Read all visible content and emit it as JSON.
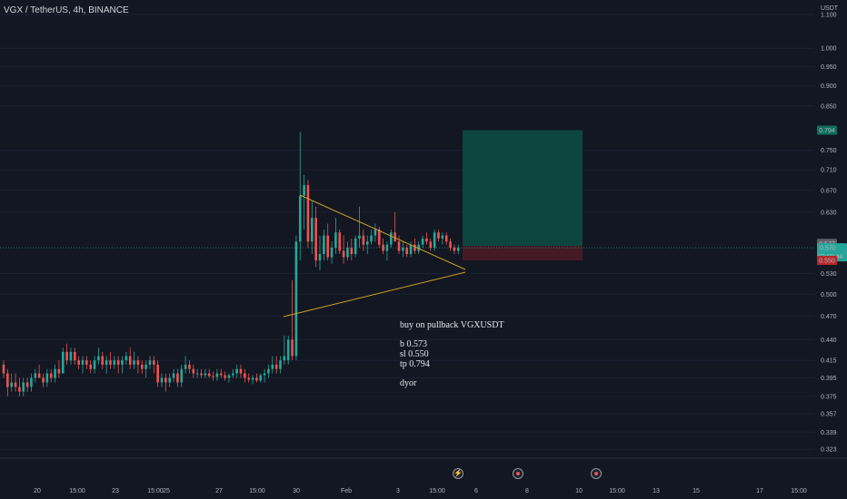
{
  "header": {
    "title": "VGX / TetherUS, 4h, BINANCE"
  },
  "axis": {
    "currency": "USDT",
    "price_ticks": [
      "1.100",
      "1.000",
      "0.950",
      "0.900",
      "0.850",
      "0.750",
      "0.710",
      "0.670",
      "0.630",
      "0.530",
      "0.500",
      "0.470",
      "0.440",
      "0.415",
      "0.395",
      "0.375",
      "0.357",
      "0.339",
      "0.323"
    ],
    "time_ticks": [
      "20",
      "15:00",
      "23",
      "15:00",
      "25",
      "27",
      "15:00",
      "30",
      "Feb",
      "3",
      "15:00",
      "6",
      "8",
      "10",
      "15:00",
      "13",
      "15",
      "17",
      "15:00"
    ]
  },
  "price_labels": {
    "tp": "0.794",
    "last_close": "0.577",
    "current": "0.570",
    "countdown": "02:59:44",
    "sl": "0.550"
  },
  "note": {
    "line1": "buy on pullback VGXUSDT",
    "line2": "b 0.573",
    "line3": "sl 0.550",
    "line4": "tp 0.794",
    "line5": "dyor"
  },
  "events": [
    {
      "icon": "lightning-icon"
    },
    {
      "icon": "flag-icon"
    },
    {
      "icon": "flag-icon"
    }
  ],
  "colors": {
    "up": "#26a69a",
    "down": "#ef5350",
    "bg": "#131722",
    "trendline": "#c9a227",
    "target_zone": "#0d4a42",
    "stop_zone": "#4a1c26"
  },
  "chart_data": {
    "type": "candlestick",
    "symbol": "VGX / TetherUS",
    "timeframe": "4h",
    "exchange": "BINANCE",
    "y_scale": "log",
    "ylim": [
      0.315,
      1.14
    ],
    "position": {
      "side": "long",
      "entry": 0.573,
      "stop_loss": 0.55,
      "take_profit": 0.794
    },
    "candles": [
      [
        0.41,
        0.415,
        0.395,
        0.4
      ],
      [
        0.4,
        0.405,
        0.375,
        0.385
      ],
      [
        0.385,
        0.4,
        0.38,
        0.39
      ],
      [
        0.39,
        0.4,
        0.38,
        0.385
      ],
      [
        0.385,
        0.395,
        0.375,
        0.38
      ],
      [
        0.38,
        0.395,
        0.375,
        0.39
      ],
      [
        0.39,
        0.395,
        0.38,
        0.385
      ],
      [
        0.385,
        0.4,
        0.38,
        0.395
      ],
      [
        0.395,
        0.405,
        0.39,
        0.4
      ],
      [
        0.4,
        0.41,
        0.395,
        0.395
      ],
      [
        0.395,
        0.4,
        0.385,
        0.39
      ],
      [
        0.39,
        0.405,
        0.385,
        0.4
      ],
      [
        0.4,
        0.405,
        0.39,
        0.395
      ],
      [
        0.395,
        0.41,
        0.39,
        0.405
      ],
      [
        0.405,
        0.415,
        0.395,
        0.4
      ],
      [
        0.4,
        0.43,
        0.4,
        0.425
      ],
      [
        0.425,
        0.435,
        0.41,
        0.415
      ],
      [
        0.415,
        0.43,
        0.41,
        0.425
      ],
      [
        0.425,
        0.43,
        0.41,
        0.415
      ],
      [
        0.415,
        0.42,
        0.405,
        0.41
      ],
      [
        0.41,
        0.42,
        0.4,
        0.415
      ],
      [
        0.415,
        0.42,
        0.405,
        0.41
      ],
      [
        0.41,
        0.415,
        0.4,
        0.405
      ],
      [
        0.405,
        0.42,
        0.4,
        0.415
      ],
      [
        0.415,
        0.43,
        0.41,
        0.42
      ],
      [
        0.42,
        0.425,
        0.405,
        0.41
      ],
      [
        0.41,
        0.42,
        0.4,
        0.415
      ],
      [
        0.415,
        0.425,
        0.405,
        0.41
      ],
      [
        0.41,
        0.42,
        0.405,
        0.415
      ],
      [
        0.415,
        0.42,
        0.4,
        0.41
      ],
      [
        0.41,
        0.42,
        0.4,
        0.415
      ],
      [
        0.415,
        0.425,
        0.41,
        0.42
      ],
      [
        0.42,
        0.43,
        0.405,
        0.41
      ],
      [
        0.41,
        0.425,
        0.405,
        0.415
      ],
      [
        0.415,
        0.42,
        0.4,
        0.41
      ],
      [
        0.41,
        0.415,
        0.4,
        0.405
      ],
      [
        0.405,
        0.415,
        0.395,
        0.41
      ],
      [
        0.41,
        0.42,
        0.405,
        0.415
      ],
      [
        0.415,
        0.42,
        0.4,
        0.41
      ],
      [
        0.41,
        0.415,
        0.385,
        0.39
      ],
      [
        0.39,
        0.4,
        0.385,
        0.395
      ],
      [
        0.395,
        0.4,
        0.38,
        0.39
      ],
      [
        0.39,
        0.4,
        0.385,
        0.395
      ],
      [
        0.395,
        0.405,
        0.39,
        0.4
      ],
      [
        0.4,
        0.405,
        0.385,
        0.39
      ],
      [
        0.39,
        0.41,
        0.385,
        0.405
      ],
      [
        0.405,
        0.42,
        0.4,
        0.41
      ],
      [
        0.41,
        0.415,
        0.4,
        0.405
      ],
      [
        0.405,
        0.41,
        0.395,
        0.4
      ],
      [
        0.4,
        0.405,
        0.395,
        0.4
      ],
      [
        0.4,
        0.405,
        0.395,
        0.398
      ],
      [
        0.398,
        0.405,
        0.395,
        0.4
      ],
      [
        0.4,
        0.405,
        0.395,
        0.397
      ],
      [
        0.397,
        0.402,
        0.392,
        0.396
      ],
      [
        0.396,
        0.405,
        0.392,
        0.4
      ],
      [
        0.4,
        0.405,
        0.395,
        0.398
      ],
      [
        0.398,
        0.402,
        0.392,
        0.395
      ],
      [
        0.395,
        0.4,
        0.39,
        0.398
      ],
      [
        0.398,
        0.405,
        0.395,
        0.4
      ],
      [
        0.4,
        0.41,
        0.395,
        0.405
      ],
      [
        0.405,
        0.41,
        0.395,
        0.4
      ],
      [
        0.4,
        0.405,
        0.39,
        0.395
      ],
      [
        0.395,
        0.4,
        0.39,
        0.393
      ],
      [
        0.393,
        0.398,
        0.388,
        0.395
      ],
      [
        0.395,
        0.4,
        0.39,
        0.392
      ],
      [
        0.392,
        0.4,
        0.39,
        0.398
      ],
      [
        0.398,
        0.405,
        0.39,
        0.4
      ],
      [
        0.4,
        0.41,
        0.395,
        0.405
      ],
      [
        0.405,
        0.42,
        0.4,
        0.41
      ],
      [
        0.41,
        0.42,
        0.4,
        0.405
      ],
      [
        0.405,
        0.42,
        0.4,
        0.415
      ],
      [
        0.415,
        0.445,
        0.41,
        0.42
      ],
      [
        0.415,
        0.445,
        0.41,
        0.44
      ],
      [
        0.44,
        0.52,
        0.415,
        0.42
      ],
      [
        0.42,
        0.59,
        0.415,
        0.58
      ],
      [
        0.58,
        0.79,
        0.55,
        0.66
      ],
      [
        0.66,
        0.7,
        0.6,
        0.68
      ],
      [
        0.68,
        0.69,
        0.57,
        0.58
      ],
      [
        0.58,
        0.65,
        0.56,
        0.62
      ],
      [
        0.62,
        0.64,
        0.54,
        0.55
      ],
      [
        0.55,
        0.59,
        0.535,
        0.56
      ],
      [
        0.56,
        0.6,
        0.55,
        0.59
      ],
      [
        0.59,
        0.61,
        0.55,
        0.555
      ],
      [
        0.555,
        0.58,
        0.545,
        0.57
      ],
      [
        0.57,
        0.62,
        0.56,
        0.595
      ],
      [
        0.595,
        0.6,
        0.56,
        0.565
      ],
      [
        0.565,
        0.59,
        0.545,
        0.555
      ],
      [
        0.555,
        0.58,
        0.55,
        0.57
      ],
      [
        0.57,
        0.585,
        0.55,
        0.56
      ],
      [
        0.56,
        0.59,
        0.555,
        0.585
      ],
      [
        0.585,
        0.64,
        0.57,
        0.59
      ],
      [
        0.59,
        0.6,
        0.565,
        0.575
      ],
      [
        0.575,
        0.59,
        0.56,
        0.58
      ],
      [
        0.58,
        0.6,
        0.575,
        0.59
      ],
      [
        0.59,
        0.61,
        0.58,
        0.6
      ],
      [
        0.6,
        0.605,
        0.57,
        0.575
      ],
      [
        0.575,
        0.585,
        0.56,
        0.565
      ],
      [
        0.565,
        0.58,
        0.55,
        0.575
      ],
      [
        0.575,
        0.6,
        0.57,
        0.595
      ],
      [
        0.595,
        0.63,
        0.58,
        0.58
      ],
      [
        0.58,
        0.59,
        0.56,
        0.565
      ],
      [
        0.565,
        0.58,
        0.555,
        0.57
      ],
      [
        0.57,
        0.575,
        0.555,
        0.56
      ],
      [
        0.56,
        0.58,
        0.555,
        0.575
      ],
      [
        0.575,
        0.585,
        0.56,
        0.565
      ],
      [
        0.565,
        0.58,
        0.56,
        0.575
      ],
      [
        0.575,
        0.59,
        0.57,
        0.585
      ],
      [
        0.585,
        0.595,
        0.575,
        0.58
      ],
      [
        0.58,
        0.585,
        0.565,
        0.57
      ],
      [
        0.57,
        0.6,
        0.565,
        0.595
      ],
      [
        0.595,
        0.6,
        0.58,
        0.585
      ],
      [
        0.585,
        0.595,
        0.575,
        0.59
      ],
      [
        0.59,
        0.595,
        0.575,
        0.58
      ],
      [
        0.58,
        0.585,
        0.565,
        0.57
      ],
      [
        0.57,
        0.575,
        0.56,
        0.565
      ],
      [
        0.565,
        0.575,
        0.56,
        0.57
      ]
    ]
  }
}
